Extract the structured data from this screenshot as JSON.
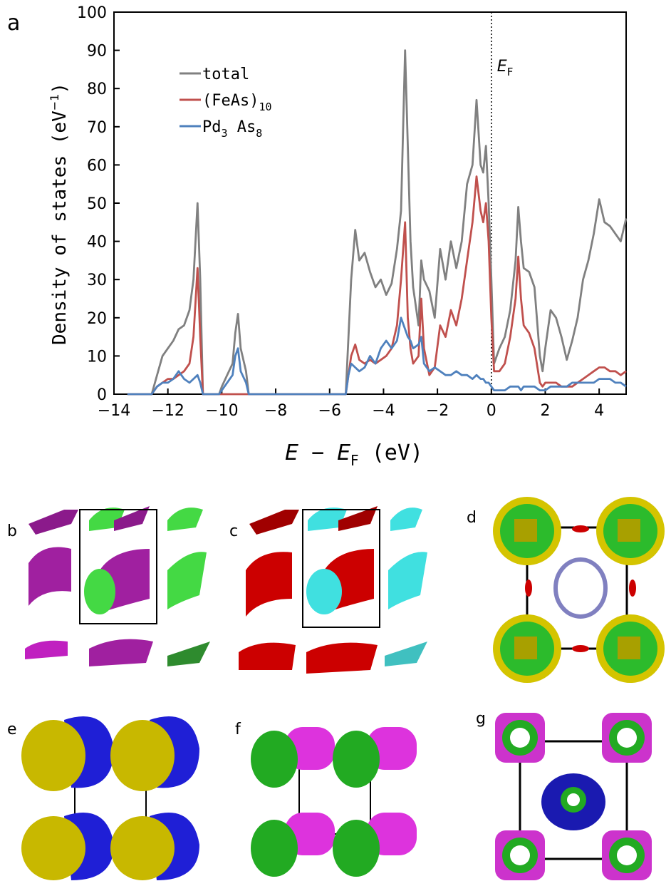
{
  "chart_data": {
    "type": "line",
    "panel_label": "a",
    "xlabel": [
      "E",
      " − ",
      "E",
      "F",
      "  (eV)"
    ],
    "ylabel": [
      "Density of states (eV",
      "−1",
      ")"
    ],
    "annotation": [
      "E",
      "F"
    ],
    "x": [
      -13.5,
      -12.6,
      -12.4,
      -12.2,
      -12.0,
      -11.8,
      -11.6,
      -11.4,
      -11.2,
      -11.05,
      -10.9,
      -10.8,
      -10.7,
      -10.1,
      -10.0,
      -9.8,
      -9.6,
      -9.5,
      -9.4,
      -9.3,
      -9.1,
      -9.0,
      -5.4,
      -5.3,
      -5.2,
      -5.05,
      -4.9,
      -4.7,
      -4.5,
      -4.3,
      -4.1,
      -3.9,
      -3.7,
      -3.5,
      -3.35,
      -3.2,
      -3.1,
      -3.0,
      -2.9,
      -2.7,
      -2.6,
      -2.5,
      -2.3,
      -2.1,
      -1.9,
      -1.7,
      -1.5,
      -1.3,
      -1.1,
      -0.9,
      -0.7,
      -0.55,
      -0.4,
      -0.3,
      -0.2,
      -0.1,
      0,
      0.1,
      0.3,
      0.5,
      0.7,
      0.9,
      1.0,
      1.1,
      1.2,
      1.4,
      1.6,
      1.8,
      1.9,
      2.0,
      2.2,
      2.4,
      2.6,
      2.8,
      3.0,
      3.2,
      3.4,
      3.6,
      3.8,
      4.0,
      4.2,
      4.4,
      4.6,
      4.8,
      5.0
    ],
    "series": [
      {
        "name": [
          "total"
        ],
        "color": "#808080",
        "values": [
          0,
          0,
          5,
          10,
          12,
          14,
          17,
          18,
          22,
          30,
          50,
          30,
          0,
          0,
          2,
          5,
          8,
          16,
          21,
          12,
          6,
          0,
          0,
          15,
          30,
          43,
          35,
          37,
          32,
          28,
          30,
          26,
          29,
          38,
          48,
          90,
          65,
          40,
          28,
          18,
          35,
          30,
          27,
          20,
          38,
          30,
          40,
          33,
          40,
          55,
          60,
          77,
          60,
          58,
          65,
          50,
          30,
          8,
          12,
          15,
          22,
          35,
          49,
          40,
          33,
          32,
          28,
          10,
          6,
          12,
          22,
          20,
          15,
          9,
          14,
          20,
          30,
          35,
          42,
          51,
          45,
          44,
          42,
          40,
          46
        ]
      },
      {
        "name": [
          "(FeAs)",
          "10"
        ],
        "color": "#c0504d",
        "values": [
          0,
          0,
          2,
          3,
          4,
          4,
          5,
          6,
          8,
          15,
          33,
          15,
          0,
          0,
          0,
          0,
          0,
          0,
          0,
          0,
          0,
          0,
          0,
          5,
          10,
          13,
          9,
          8,
          9,
          8,
          9,
          10,
          12,
          18,
          30,
          45,
          20,
          12,
          8,
          10,
          25,
          12,
          5,
          7,
          18,
          15,
          22,
          18,
          25,
          35,
          45,
          57,
          48,
          45,
          50,
          40,
          20,
          6,
          6,
          8,
          15,
          25,
          36,
          25,
          18,
          16,
          12,
          3,
          2,
          3,
          3,
          3,
          2,
          2,
          2,
          3,
          4,
          5,
          6,
          7,
          7,
          6,
          6,
          5,
          6
        ]
      },
      {
        "name": [
          "Pd",
          "3",
          " As",
          "8"
        ],
        "color": "#4f81bd",
        "values": [
          0,
          0,
          2,
          3,
          3,
          4,
          6,
          4,
          3,
          4,
          5,
          3,
          0,
          0,
          1,
          3,
          5,
          10,
          12,
          6,
          3,
          0,
          0,
          5,
          8,
          7,
          6,
          7,
          10,
          8,
          12,
          14,
          12,
          14,
          20,
          17,
          15,
          14,
          12,
          13,
          15,
          8,
          6,
          7,
          6,
          5,
          5,
          6,
          5,
          5,
          4,
          5,
          4,
          4,
          3,
          3,
          2,
          1,
          1,
          1,
          2,
          2,
          2,
          1,
          2,
          2,
          2,
          1,
          1,
          1,
          2,
          2,
          2,
          2,
          3,
          3,
          3,
          3,
          3,
          4,
          4,
          4,
          3,
          3,
          2
        ]
      }
    ],
    "xlim": [
      -14,
      5
    ],
    "ylim": [
      0,
      100
    ],
    "xticks": [
      {
        "value": -14,
        "label": "−14"
      },
      {
        "value": -12,
        "label": "−12"
      },
      {
        "value": -10,
        "label": "−10"
      },
      {
        "value": -8,
        "label": "−8"
      },
      {
        "value": -6,
        "label": "−6"
      },
      {
        "value": -4,
        "label": "−4"
      },
      {
        "value": -2,
        "label": "−2"
      },
      0,
      2,
      4
    ],
    "yticks": [
      0,
      10,
      20,
      30,
      40,
      50,
      60,
      70,
      80,
      90,
      100
    ],
    "legend": "upper left",
    "grid": false
  },
  "panels": [
    "b",
    "c",
    "d",
    "e",
    "f",
    "g"
  ]
}
